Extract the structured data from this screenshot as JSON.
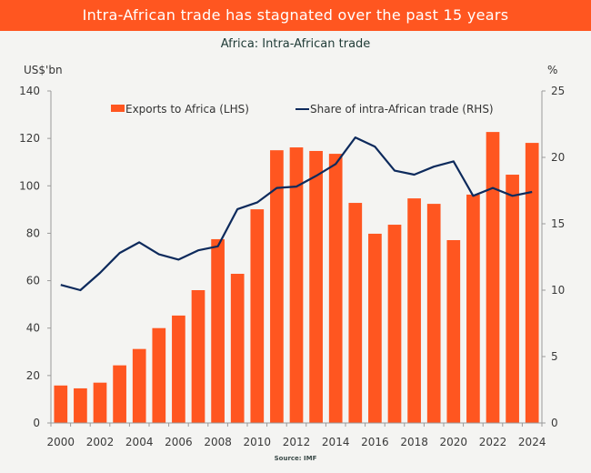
{
  "header": {
    "title": "Intra-African trade has stagnated over the past 15 years"
  },
  "colors": {
    "header_bg": "#ff5620",
    "bar": "#ff5620",
    "line": "#0d2a5c",
    "axis": "#9a9a9a",
    "background": "#f4f4f2"
  },
  "footer": {
    "source": "Source: IMF"
  },
  "chart_data": {
    "type": "bar",
    "title": "Africa: Intra-African trade",
    "ylabel": "US$'bn",
    "y2label": "%",
    "xlabel": "",
    "categories": [
      "2000",
      "2001",
      "2002",
      "2003",
      "2004",
      "2005",
      "2006",
      "2007",
      "2008",
      "2009",
      "2010",
      "2011",
      "2012",
      "2013",
      "2014",
      "2015",
      "2016",
      "2017",
      "2018",
      "2019",
      "2020",
      "2021",
      "2022",
      "2023",
      "2024"
    ],
    "x_tick_labels": [
      "2000",
      "2002",
      "2004",
      "2006",
      "2008",
      "2010",
      "2012",
      "2014",
      "2016",
      "2018",
      "2020",
      "2022",
      "2024"
    ],
    "ylim": [
      0,
      140
    ],
    "y_ticks": [
      0,
      20,
      40,
      60,
      80,
      100,
      120,
      140
    ],
    "y2lim": [
      0,
      25
    ],
    "y2_ticks": [
      0,
      5,
      10,
      15,
      20,
      25
    ],
    "grid": false,
    "legend_placement": "top",
    "series": [
      {
        "name": "Exports to Africa (LHS)",
        "type": "bar",
        "axis": "left",
        "values": [
          15.8,
          14.6,
          17.0,
          24.3,
          31.2,
          40.0,
          45.3,
          56.0,
          77.5,
          62.9,
          90.1,
          115.0,
          116.2,
          114.7,
          113.5,
          92.8,
          79.8,
          83.6,
          94.7,
          92.4,
          77.1,
          96.3,
          122.7,
          104.7,
          118.1
        ]
      },
      {
        "name": "Share of intra-African trade (RHS)",
        "type": "line",
        "axis": "right",
        "values": [
          10.4,
          10.0,
          11.3,
          12.8,
          13.6,
          12.7,
          12.3,
          13.0,
          13.3,
          16.1,
          16.6,
          17.7,
          17.8,
          18.6,
          19.5,
          21.5,
          20.8,
          19.0,
          18.7,
          19.3,
          19.7,
          17.1,
          17.7,
          17.1,
          17.4
        ]
      }
    ]
  }
}
